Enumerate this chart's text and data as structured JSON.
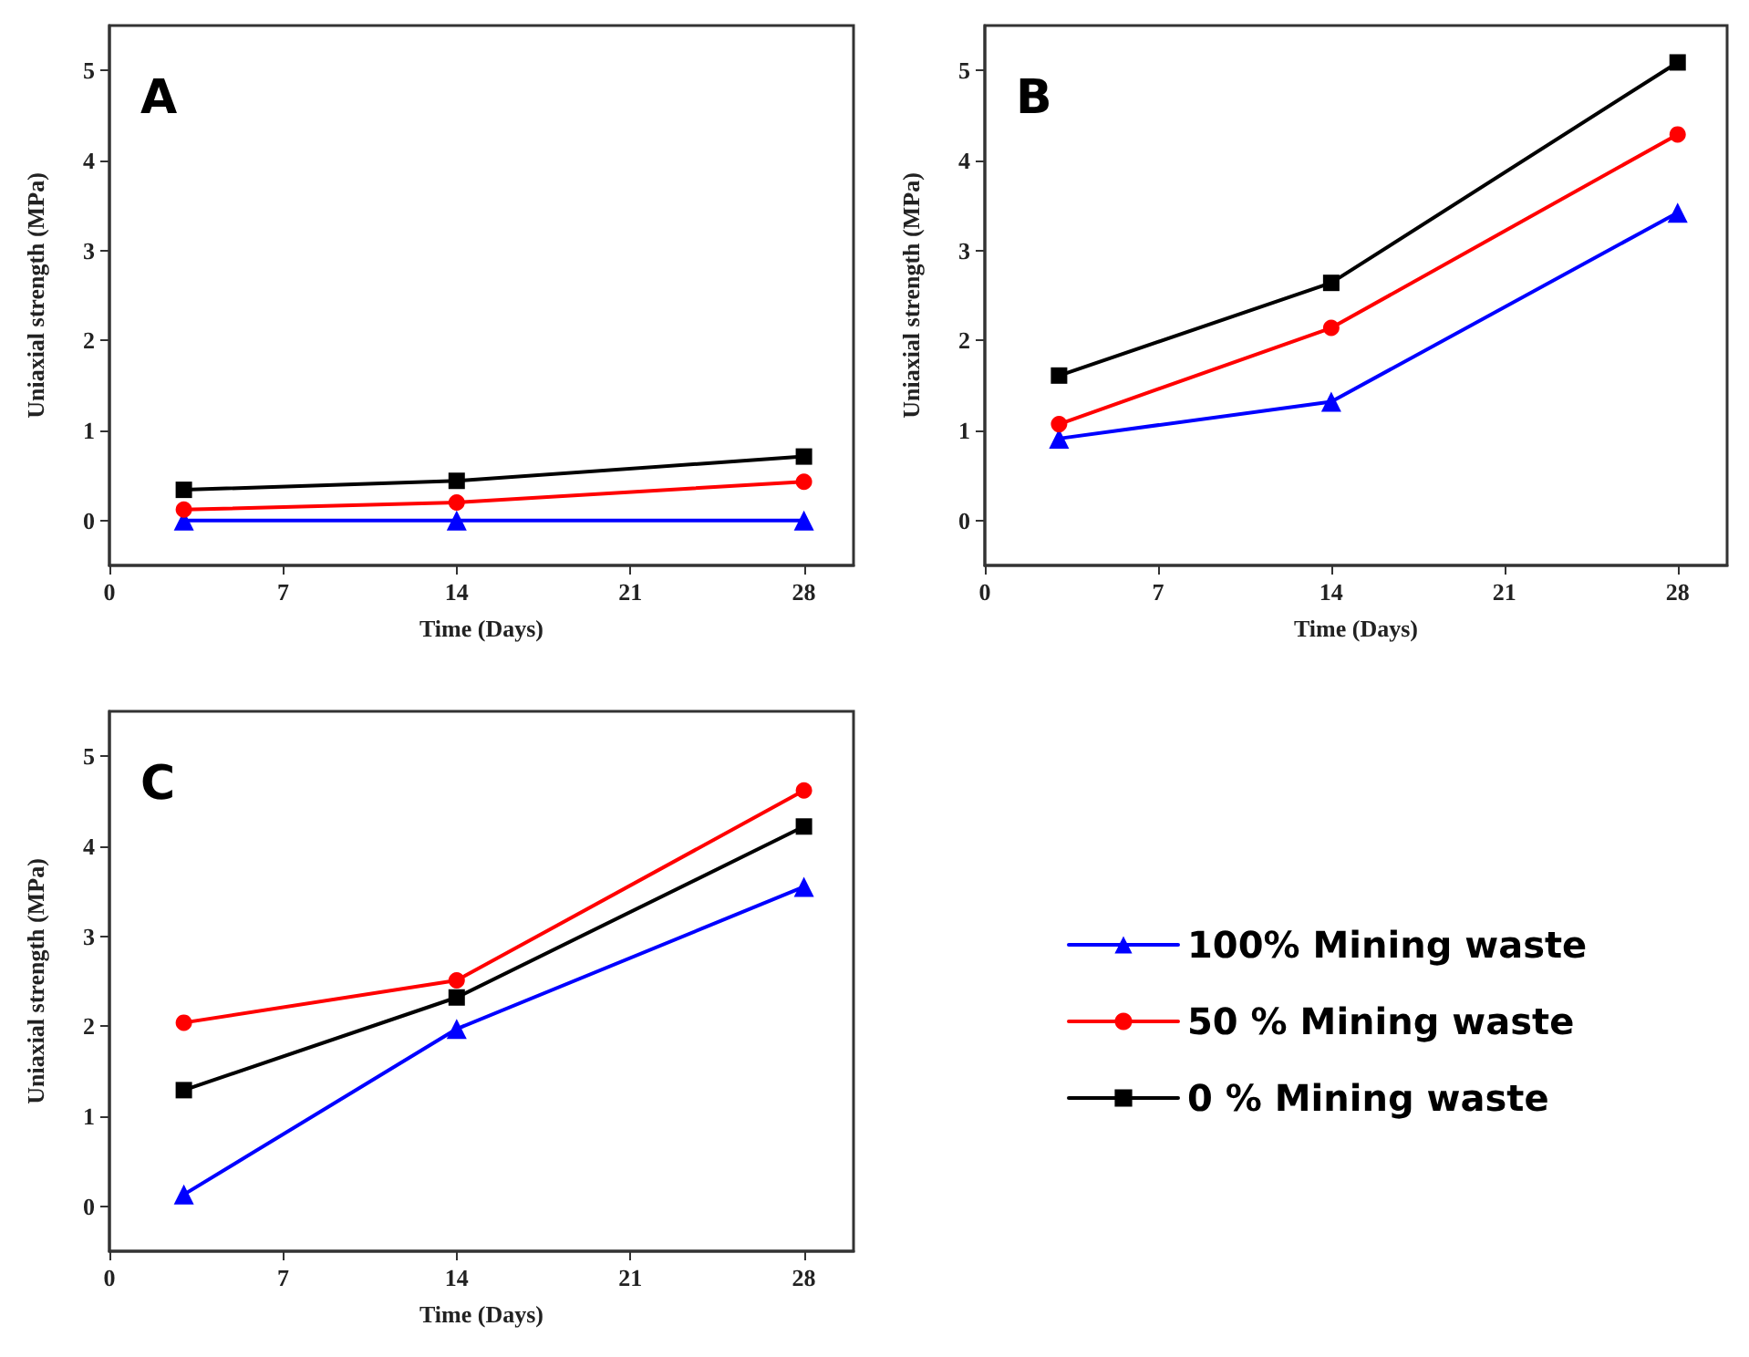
{
  "chart_data": [
    {
      "type": "line",
      "title": "A",
      "xlabel": "Time (Days)",
      "ylabel": "Uniaxial strength (MPa)",
      "x": [
        3,
        14,
        28
      ],
      "xlim": [
        0,
        30
      ],
      "xticks": [
        0,
        7,
        14,
        21,
        28
      ],
      "ylim": [
        -0.5,
        5.5
      ],
      "yticks": [
        0,
        1,
        2,
        3,
        4,
        5
      ],
      "grid": false,
      "legend": false,
      "series": [
        {
          "color": "#0000ff",
          "marker": "triangle",
          "values": [
            0.0,
            0.0,
            0.0
          ]
        },
        {
          "color": "#ff0000",
          "marker": "circle",
          "values": [
            0.12,
            0.2,
            0.43
          ]
        },
        {
          "color": "#000000",
          "marker": "square",
          "values": [
            0.34,
            0.44,
            0.71
          ]
        }
      ]
    },
    {
      "type": "line",
      "title": "B",
      "xlabel": "Time (Days)",
      "ylabel": "Uniaxial strength (MPa)",
      "x": [
        3,
        14,
        28
      ],
      "xlim": [
        0,
        30
      ],
      "xticks": [
        0,
        7,
        14,
        21,
        28
      ],
      "ylim": [
        -0.5,
        5.5
      ],
      "yticks": [
        0,
        1,
        2,
        3,
        4,
        5
      ],
      "grid": false,
      "legend": false,
      "series": [
        {
          "color": "#0000ff",
          "marker": "triangle",
          "values": [
            0.91,
            1.32,
            3.42
          ]
        },
        {
          "color": "#ff0000",
          "marker": "circle",
          "values": [
            1.07,
            2.14,
            4.29
          ]
        },
        {
          "color": "#000000",
          "marker": "square",
          "values": [
            1.61,
            2.64,
            5.09
          ]
        }
      ]
    },
    {
      "type": "line",
      "title": "C",
      "xlabel": "Time (Days)",
      "ylabel": "Uniaxial strength (MPa)",
      "x": [
        3,
        14,
        28
      ],
      "xlim": [
        0,
        30
      ],
      "xticks": [
        0,
        7,
        14,
        21,
        28
      ],
      "ylim": [
        -0.5,
        5.5
      ],
      "yticks": [
        0,
        1,
        2,
        3,
        4,
        5
      ],
      "grid": false,
      "legend": "right",
      "series": [
        {
          "name": "100% Mining waste",
          "color": "#0000ff",
          "marker": "triangle",
          "values": [
            0.13,
            1.97,
            3.55
          ]
        },
        {
          "name": "50 % Mining waste",
          "color": "#ff0000",
          "marker": "circle",
          "values": [
            2.04,
            2.51,
            4.62
          ]
        },
        {
          "name": "0 % Mining waste",
          "color": "#000000",
          "marker": "square",
          "values": [
            1.29,
            2.32,
            4.22
          ]
        }
      ]
    }
  ]
}
